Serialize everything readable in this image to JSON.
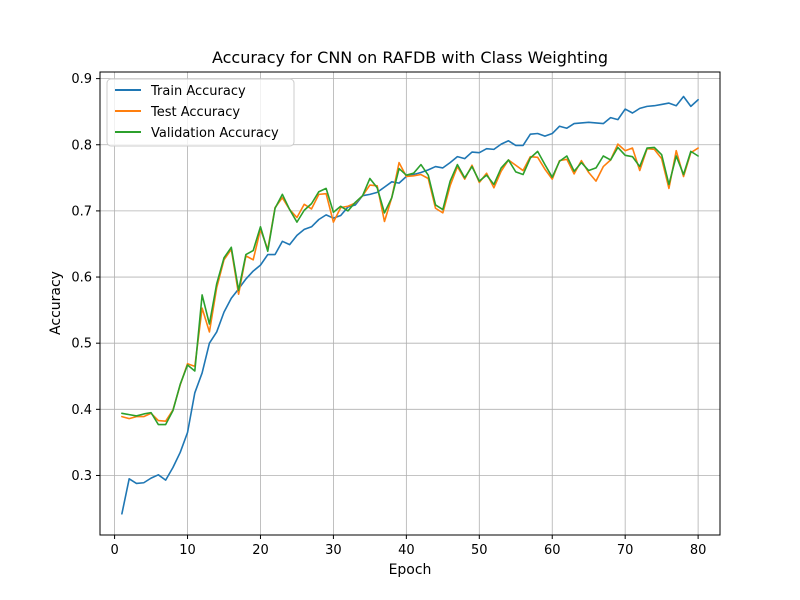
{
  "chart_data": {
    "type": "line",
    "title": "Accuracy for CNN on RAFDB with Class Weighting",
    "xlabel": "Epoch",
    "ylabel": "Accuracy",
    "xlim": [
      -2,
      83
    ],
    "ylim": [
      0.21,
      0.91
    ],
    "xticks": [
      0,
      10,
      20,
      30,
      40,
      50,
      60,
      70,
      80
    ],
    "yticks": [
      0.3,
      0.4,
      0.5,
      0.6,
      0.7,
      0.8,
      0.9
    ],
    "grid": true,
    "legend_position": "top-left",
    "x": [
      1,
      2,
      3,
      4,
      5,
      6,
      7,
      8,
      9,
      10,
      11,
      12,
      13,
      14,
      15,
      16,
      17,
      18,
      19,
      20,
      21,
      22,
      23,
      24,
      25,
      26,
      27,
      28,
      29,
      30,
      31,
      32,
      33,
      34,
      35,
      36,
      37,
      38,
      39,
      40,
      41,
      42,
      43,
      44,
      45,
      46,
      47,
      48,
      49,
      50,
      51,
      52,
      53,
      54,
      55,
      56,
      57,
      58,
      59,
      60,
      61,
      62,
      63,
      64,
      65,
      66,
      67,
      68,
      69,
      70,
      71,
      72,
      73,
      74,
      75,
      76,
      77,
      78,
      79,
      80
    ],
    "series": [
      {
        "name": "Train Accuracy",
        "color": "#1f77b4",
        "values": [
          0.242,
          0.295,
          0.288,
          0.289,
          0.296,
          0.301,
          0.293,
          0.312,
          0.335,
          0.365,
          0.425,
          0.455,
          0.5,
          0.517,
          0.547,
          0.568,
          0.582,
          0.597,
          0.609,
          0.618,
          0.634,
          0.634,
          0.654,
          0.649,
          0.663,
          0.672,
          0.676,
          0.687,
          0.694,
          0.689,
          0.693,
          0.706,
          0.709,
          0.723,
          0.725,
          0.728,
          0.736,
          0.744,
          0.742,
          0.752,
          0.755,
          0.758,
          0.762,
          0.767,
          0.765,
          0.773,
          0.782,
          0.779,
          0.789,
          0.788,
          0.794,
          0.793,
          0.801,
          0.806,
          0.799,
          0.799,
          0.816,
          0.817,
          0.813,
          0.817,
          0.828,
          0.825,
          0.832,
          0.833,
          0.834,
          0.833,
          0.832,
          0.841,
          0.838,
          0.854,
          0.848,
          0.855,
          0.858,
          0.859,
          0.861,
          0.863,
          0.859,
          0.873,
          0.858,
          0.868
        ]
      },
      {
        "name": "Test Accuracy",
        "color": "#ff7f0e",
        "values": [
          0.389,
          0.386,
          0.389,
          0.389,
          0.394,
          0.383,
          0.382,
          0.399,
          0.437,
          0.469,
          0.465,
          0.553,
          0.517,
          0.584,
          0.626,
          0.642,
          0.574,
          0.632,
          0.626,
          0.672,
          0.642,
          0.705,
          0.72,
          0.702,
          0.69,
          0.71,
          0.703,
          0.725,
          0.726,
          0.683,
          0.705,
          0.707,
          0.712,
          0.723,
          0.739,
          0.738,
          0.684,
          0.72,
          0.773,
          0.752,
          0.753,
          0.755,
          0.749,
          0.704,
          0.697,
          0.738,
          0.767,
          0.748,
          0.769,
          0.743,
          0.757,
          0.735,
          0.76,
          0.777,
          0.769,
          0.761,
          0.782,
          0.781,
          0.763,
          0.748,
          0.776,
          0.778,
          0.756,
          0.776,
          0.758,
          0.745,
          0.767,
          0.777,
          0.801,
          0.791,
          0.795,
          0.761,
          0.794,
          0.793,
          0.779,
          0.734,
          0.791,
          0.752,
          0.788,
          0.795
        ]
      },
      {
        "name": "Validation Accuracy",
        "color": "#2ca02c",
        "values": [
          0.394,
          0.392,
          0.39,
          0.393,
          0.395,
          0.377,
          0.377,
          0.398,
          0.438,
          0.467,
          0.458,
          0.573,
          0.529,
          0.59,
          0.629,
          0.645,
          0.58,
          0.634,
          0.64,
          0.676,
          0.639,
          0.704,
          0.725,
          0.702,
          0.683,
          0.701,
          0.711,
          0.729,
          0.734,
          0.698,
          0.707,
          0.7,
          0.713,
          0.723,
          0.749,
          0.735,
          0.697,
          0.72,
          0.764,
          0.754,
          0.757,
          0.77,
          0.754,
          0.709,
          0.702,
          0.745,
          0.77,
          0.75,
          0.767,
          0.745,
          0.754,
          0.74,
          0.765,
          0.777,
          0.759,
          0.755,
          0.78,
          0.79,
          0.77,
          0.751,
          0.775,
          0.783,
          0.76,
          0.773,
          0.761,
          0.765,
          0.783,
          0.777,
          0.796,
          0.784,
          0.782,
          0.767,
          0.795,
          0.796,
          0.785,
          0.74,
          0.783,
          0.755,
          0.79,
          0.783
        ]
      }
    ]
  }
}
